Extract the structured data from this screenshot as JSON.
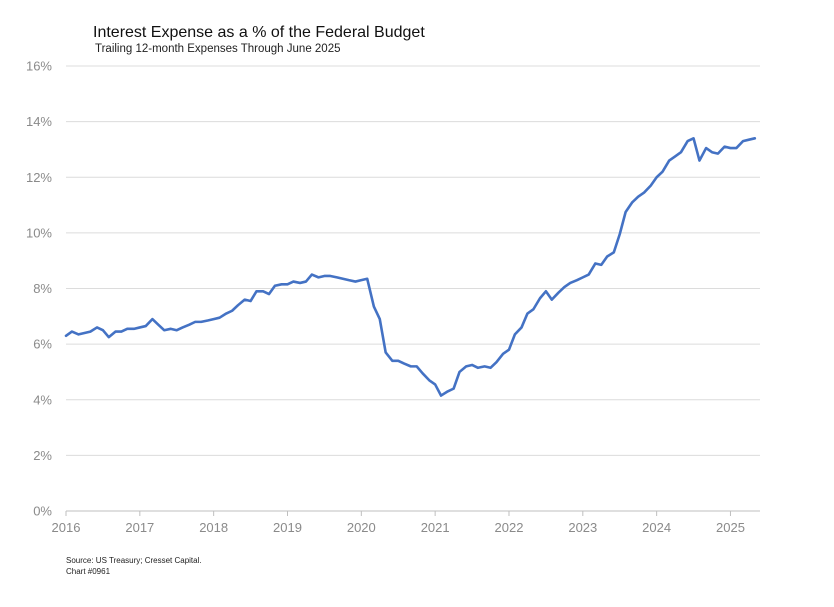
{
  "chart_data": {
    "type": "line",
    "title": "Interest Expense as a % of the Federal Budget",
    "subtitle": "Trailing 12-month Expenses Through June 2025",
    "xlabel": "",
    "ylabel": "",
    "xlim": [
      2016,
      2025.4
    ],
    "ylim": [
      0,
      16
    ],
    "y_ticks": [
      "0%",
      "2%",
      "4%",
      "6%",
      "8%",
      "10%",
      "12%",
      "14%",
      "16%"
    ],
    "x_ticks": [
      "2016",
      "2017",
      "2018",
      "2019",
      "2020",
      "2021",
      "2022",
      "2023",
      "2024",
      "2025"
    ],
    "grid": "horizontal",
    "line_color": "#4472C4",
    "series": [
      {
        "x": [
          2016.0,
          2016.08,
          2016.17,
          2016.25,
          2016.33,
          2016.42,
          2016.5,
          2016.58,
          2016.67,
          2016.75,
          2016.83,
          2016.92,
          2017.0,
          2017.08,
          2017.17,
          2017.25,
          2017.33,
          2017.42,
          2017.5,
          2017.58,
          2017.67,
          2017.75,
          2017.83,
          2017.92,
          2018.0,
          2018.08,
          2018.17,
          2018.25,
          2018.33,
          2018.42,
          2018.5,
          2018.58,
          2018.67,
          2018.75,
          2018.83,
          2018.92,
          2019.0,
          2019.08,
          2019.17,
          2019.25,
          2019.33,
          2019.42,
          2019.5,
          2019.58,
          2019.67,
          2019.75,
          2019.83,
          2019.92,
          2020.0,
          2020.08,
          2020.17,
          2020.25,
          2020.33,
          2020.42,
          2020.5,
          2020.58,
          2020.67,
          2020.75,
          2020.83,
          2020.92,
          2021.0,
          2021.08,
          2021.17,
          2021.25,
          2021.33,
          2021.42,
          2021.5,
          2021.58,
          2021.67,
          2021.75,
          2021.83,
          2021.92,
          2022.0,
          2022.08,
          2022.17,
          2022.25,
          2022.33,
          2022.42,
          2022.5,
          2022.58,
          2022.67,
          2022.75,
          2022.83,
          2022.92,
          2023.0,
          2023.08,
          2023.17,
          2023.25,
          2023.33,
          2023.42,
          2023.5,
          2023.58,
          2023.67,
          2023.75,
          2023.83,
          2023.92,
          2024.0,
          2024.08,
          2024.17,
          2024.25,
          2024.33,
          2024.42,
          2024.5,
          2024.58,
          2024.67,
          2024.75,
          2024.83,
          2024.92,
          2025.0,
          2025.08,
          2025.17,
          2025.25,
          2025.33
        ],
        "values": [
          6.3,
          6.45,
          6.35,
          6.4,
          6.45,
          6.6,
          6.5,
          6.25,
          6.45,
          6.45,
          6.55,
          6.55,
          6.6,
          6.65,
          6.9,
          6.7,
          6.5,
          6.55,
          6.5,
          6.6,
          6.7,
          6.8,
          6.8,
          6.85,
          6.9,
          6.95,
          7.1,
          7.2,
          7.4,
          7.6,
          7.55,
          7.9,
          7.9,
          7.8,
          8.1,
          8.15,
          8.15,
          8.25,
          8.2,
          8.25,
          8.5,
          8.4,
          8.45,
          8.45,
          8.4,
          8.35,
          8.3,
          8.25,
          8.3,
          8.35,
          7.35,
          6.9,
          5.7,
          5.4,
          5.4,
          5.3,
          5.2,
          5.2,
          4.95,
          4.7,
          4.55,
          4.15,
          4.3,
          4.4,
          5.0,
          5.2,
          5.25,
          5.15,
          5.2,
          5.15,
          5.35,
          5.65,
          5.8,
          6.35,
          6.6,
          7.1,
          7.25,
          7.65,
          7.9,
          7.6,
          7.85,
          8.05,
          8.2,
          8.3,
          8.4,
          8.5,
          8.9,
          8.85,
          9.15,
          9.3,
          9.95,
          10.75,
          11.1,
          11.3,
          11.45,
          11.7,
          12.0,
          12.2,
          12.6,
          12.75,
          12.9,
          13.3,
          13.4,
          12.6,
          13.05,
          12.9,
          12.85,
          13.1,
          13.05,
          13.05,
          13.3,
          13.35,
          13.4
        ]
      }
    ]
  },
  "source": {
    "line1": "Source: US Treasury; Cresset Capital.",
    "line2": "Chart #0961"
  }
}
